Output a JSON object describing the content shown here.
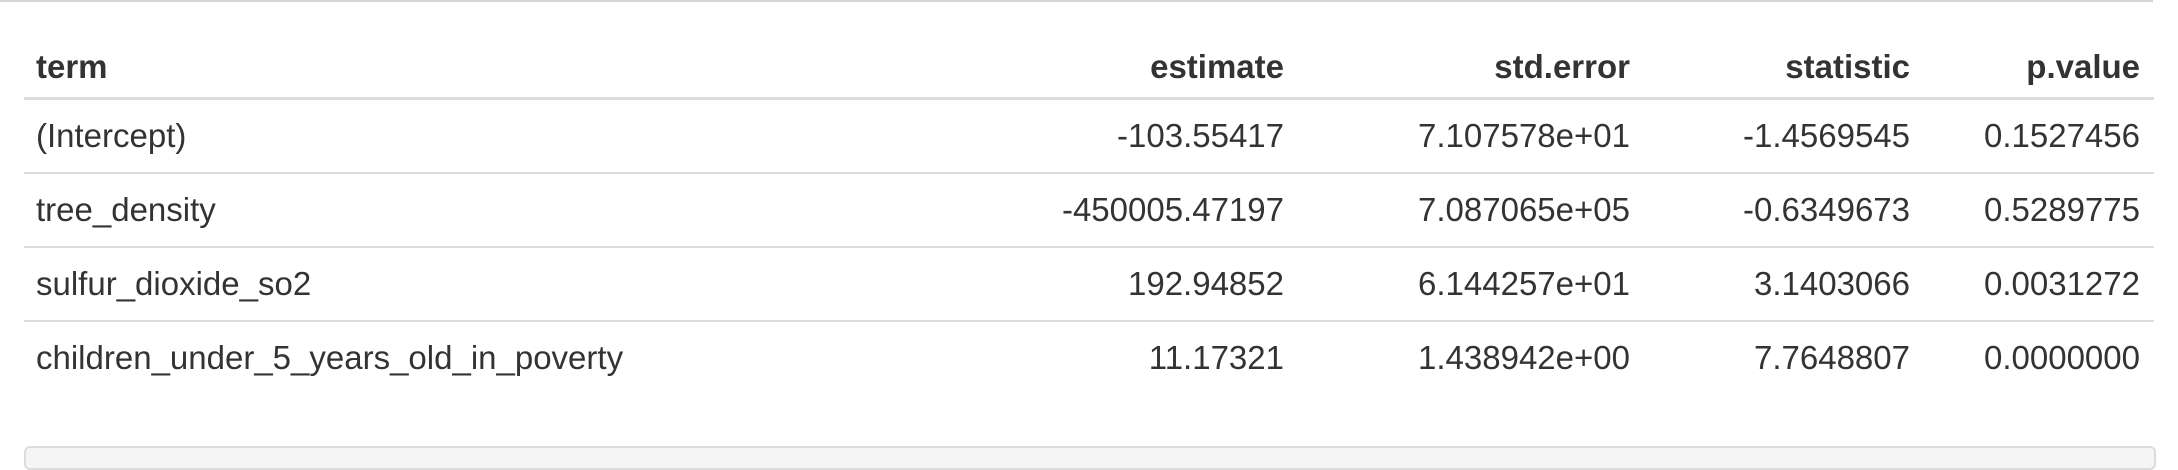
{
  "table": {
    "columns": [
      "term",
      "estimate",
      "std.error",
      "statistic",
      "p.value"
    ],
    "rows": [
      {
        "term": "(Intercept)",
        "estimate": "-103.55417",
        "std_error": "7.107578e+01",
        "statistic": "-1.4569545",
        "p_value": "0.1527456"
      },
      {
        "term": "tree_density",
        "estimate": "-450005.47197",
        "std_error": "7.087065e+05",
        "statistic": "-0.6349673",
        "p_value": "0.5289775"
      },
      {
        "term": "sulfur_dioxide_so2",
        "estimate": "192.94852",
        "std_error": "6.144257e+01",
        "statistic": "3.1403066",
        "p_value": "0.0031272"
      },
      {
        "term": "children_under_5_years_old_in_poverty",
        "estimate": "11.17321",
        "std_error": "1.438942e+00",
        "statistic": "7.7648807",
        "p_value": "0.0000000"
      }
    ]
  }
}
